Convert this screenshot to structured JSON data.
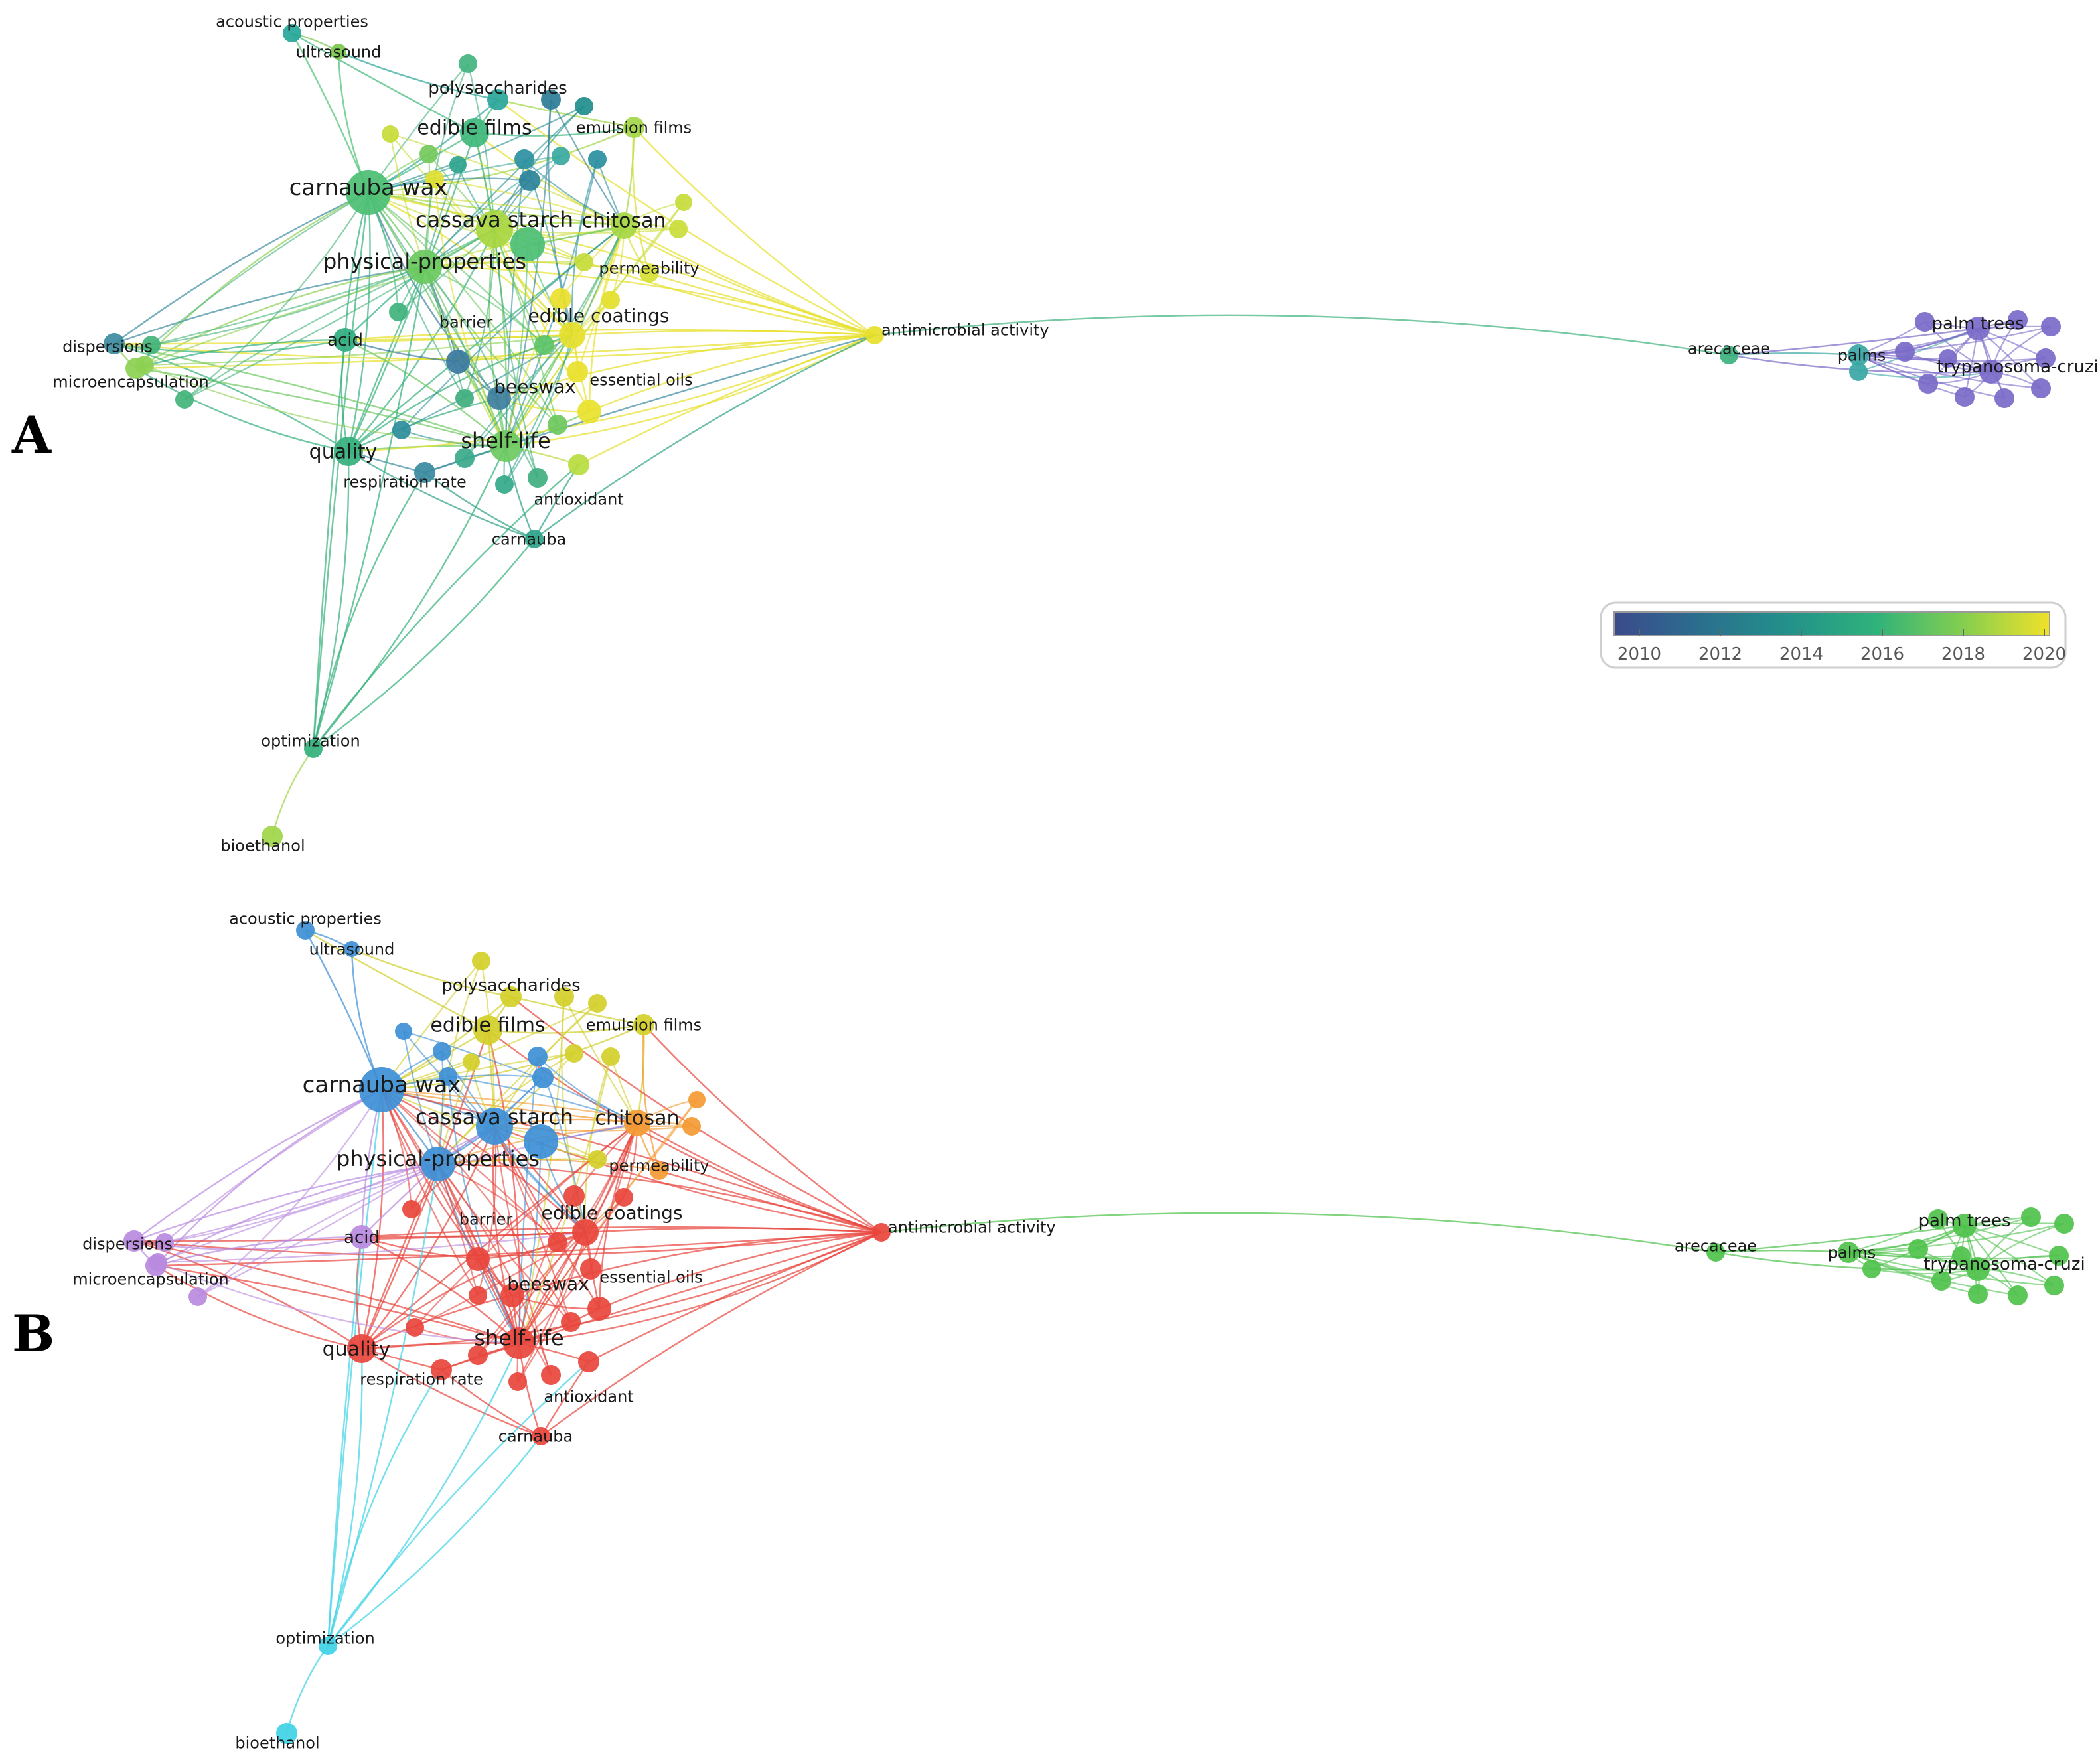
{
  "panels": [
    {
      "id": "A",
      "label": "A",
      "coloring": "publication-year overlay",
      "legend": {
        "ticks": [
          "2010",
          "2012",
          "2014",
          "2016",
          "2018",
          "2020"
        ],
        "colors": [
          "#3b4a8c",
          "#2b6f8e",
          "#23918a",
          "#2fb27b",
          "#84ce4f",
          "#f0e12a"
        ]
      },
      "labeled_nodes": [
        {
          "key": "acoustic",
          "text": "acoustic properties",
          "color": "#26a69a"
        },
        {
          "key": "ultrasound",
          "text": "ultrasound",
          "color": "#7cc84d"
        },
        {
          "key": "polysaccharides",
          "text": "polysaccharides",
          "color": "#2aa59a"
        },
        {
          "key": "edible_films",
          "text": "edible films",
          "color": "#3fb87c"
        },
        {
          "key": "emulsion_films",
          "text": "emulsion films",
          "color": "#a3d646"
        },
        {
          "key": "carnauba_wax",
          "text": "carnauba wax",
          "color": "#4cbf74"
        },
        {
          "key": "cassava_starch",
          "text": "cassava starch",
          "color": "#a8d640"
        },
        {
          "key": "chitosan",
          "text": "chitosan",
          "color": "#a6d744"
        },
        {
          "key": "physical_properties",
          "text": "physical-properties",
          "color": "#6ac95e"
        },
        {
          "key": "permeability",
          "text": "permeability",
          "color": "#d7e034"
        },
        {
          "key": "dispersions",
          "text": "dispersions",
          "color": "#3d8ba0"
        },
        {
          "key": "microencapsulation",
          "text": "microencapsulation",
          "color": "#8dd052"
        },
        {
          "key": "acid",
          "text": "acid",
          "color": "#2fae80"
        },
        {
          "key": "barrier",
          "text": "barrier",
          "color": "#3a7aa0"
        },
        {
          "key": "edible_coatings",
          "text": "edible coatings",
          "color": "#e6e02c"
        },
        {
          "key": "antimicrobial",
          "text": "antimicrobial activity",
          "color": "#e7e02a"
        },
        {
          "key": "beeswax",
          "text": "beeswax",
          "color": "#3e7f9e"
        },
        {
          "key": "essential_oils",
          "text": "essential oils",
          "color": "#e8e22b"
        },
        {
          "key": "quality",
          "text": "quality",
          "color": "#36b07d"
        },
        {
          "key": "shelf_life",
          "text": "shelf-life",
          "color": "#6cc95f"
        },
        {
          "key": "respiration_rate",
          "text": "respiration rate",
          "color": "#3a8aa0"
        },
        {
          "key": "antioxidant",
          "text": "antioxidant",
          "color": "#b9dc3f"
        },
        {
          "key": "carnauba",
          "text": "carnauba",
          "color": "#2ea388"
        },
        {
          "key": "optimization",
          "text": "optimization",
          "color": "#33b07b"
        },
        {
          "key": "bioethanol",
          "text": "bioethanol",
          "color": "#9fd548"
        },
        {
          "key": "arecaceae",
          "text": "arecaceae",
          "color": "#3db27e"
        },
        {
          "key": "palms",
          "text": "palms",
          "color": "#3aa7a4"
        },
        {
          "key": "palm_trees",
          "text": "palm trees",
          "color": "#7a6ac8"
        },
        {
          "key": "trypanosoma",
          "text": "trypanosoma-cruzi",
          "color": "#7a6ac8"
        }
      ]
    },
    {
      "id": "B",
      "label": "B",
      "coloring": "cluster",
      "labeled_nodes": [
        {
          "key": "acoustic",
          "text": "acoustic properties",
          "color": "#3d8fd6"
        },
        {
          "key": "ultrasound",
          "text": "ultrasound",
          "color": "#3d8fd6"
        },
        {
          "key": "polysaccharides",
          "text": "polysaccharides",
          "color": "#d2cf2a"
        },
        {
          "key": "edible_films",
          "text": "edible films",
          "color": "#d2cf2a"
        },
        {
          "key": "emulsion_films",
          "text": "emulsion films",
          "color": "#d2cf2a"
        },
        {
          "key": "carnauba_wax",
          "text": "carnauba wax",
          "color": "#3d8fd6"
        },
        {
          "key": "cassava_starch",
          "text": "cassava starch",
          "color": "#3d8fd6"
        },
        {
          "key": "chitosan",
          "text": "chitosan",
          "color": "#f39a33"
        },
        {
          "key": "physical_properties",
          "text": "physical-properties",
          "color": "#3d8fd6"
        },
        {
          "key": "permeability",
          "text": "permeability",
          "color": "#f39a33"
        },
        {
          "key": "dispersions",
          "text": "dispersions",
          "color": "#b98ae0"
        },
        {
          "key": "microencapsulation",
          "text": "microencapsulation",
          "color": "#b98ae0"
        },
        {
          "key": "acid",
          "text": "acid",
          "color": "#b98ae0"
        },
        {
          "key": "barrier",
          "text": "barrier",
          "color": "#e8453c"
        },
        {
          "key": "edible_coatings",
          "text": "edible coatings",
          "color": "#e8453c"
        },
        {
          "key": "antimicrobial",
          "text": "antimicrobial activity",
          "color": "#e8453c"
        },
        {
          "key": "beeswax",
          "text": "beeswax",
          "color": "#e8453c"
        },
        {
          "key": "essential_oils",
          "text": "essential oils",
          "color": "#e8453c"
        },
        {
          "key": "quality",
          "text": "quality",
          "color": "#e8453c"
        },
        {
          "key": "shelf_life",
          "text": "shelf-life",
          "color": "#e8453c"
        },
        {
          "key": "respiration_rate",
          "text": "respiration rate",
          "color": "#e8453c"
        },
        {
          "key": "antioxidant",
          "text": "antioxidant",
          "color": "#e8453c"
        },
        {
          "key": "carnauba",
          "text": "carnauba",
          "color": "#e8453c"
        },
        {
          "key": "optimization",
          "text": "optimization",
          "color": "#3fd3e6"
        },
        {
          "key": "bioethanol",
          "text": "bioethanol",
          "color": "#3fd3e6"
        },
        {
          "key": "arecaceae",
          "text": "arecaceae",
          "color": "#4fc24c"
        },
        {
          "key": "palms",
          "text": "palms",
          "color": "#4fc24c"
        },
        {
          "key": "palm_trees",
          "text": "palm trees",
          "color": "#4fc24c"
        },
        {
          "key": "trypanosoma",
          "text": "trypanosoma-cruzi",
          "color": "#4fc24c"
        }
      ]
    }
  ]
}
